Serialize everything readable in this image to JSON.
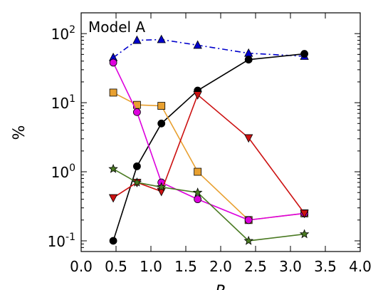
{
  "chart_data": {
    "type": "line",
    "title": "Model A",
    "xlabel": "R",
    "ylabel": "%",
    "xlim": [
      0.0,
      4.0
    ],
    "ylim": [
      0.07,
      200
    ],
    "y_scale": "log",
    "grid": false,
    "legend": "none",
    "x_ticks": [
      "0.0",
      "0.5",
      "1.0",
      "1.5",
      "2.0",
      "2.5",
      "3.0",
      "3.5",
      "4.0"
    ],
    "y_ticks": [
      {
        "base": "10",
        "exp": "-1"
      },
      {
        "base": "10",
        "exp": "0"
      },
      {
        "base": "10",
        "exp": "1"
      },
      {
        "base": "10",
        "exp": "2"
      }
    ],
    "series": [
      {
        "color": "#0000cc",
        "marker": "triangle-up",
        "line": "dashdot",
        "x": [
          0.46,
          0.8,
          1.15,
          1.67,
          2.4,
          3.2
        ],
        "y": [
          45,
          80,
          82,
          68,
          52,
          47
        ]
      },
      {
        "color": "#000000",
        "marker": "circle",
        "line": "solid",
        "x": [
          0.46,
          0.8,
          1.15,
          1.67,
          2.4,
          3.2
        ],
        "y": [
          0.1,
          1.2,
          5.0,
          15,
          42,
          51
        ]
      },
      {
        "color": "#e8a030",
        "marker": "square",
        "line": "solid",
        "x": [
          0.46,
          0.8,
          1.15,
          1.67,
          2.4,
          3.2
        ],
        "y": [
          14,
          9.3,
          9.0,
          1.0,
          0.2,
          0.25
        ]
      },
      {
        "color": "#dd00dd",
        "marker": "circle",
        "line": "solid",
        "x": [
          0.46,
          0.8,
          1.15,
          1.67,
          2.4,
          3.2
        ],
        "y": [
          38,
          7.3,
          0.7,
          0.4,
          0.2,
          0.25
        ]
      },
      {
        "color": "#cc1111",
        "marker": "triangle-down",
        "line": "solid",
        "x": [
          0.46,
          0.8,
          1.15,
          1.67,
          2.4,
          3.2
        ],
        "y": [
          0.42,
          0.7,
          0.52,
          13,
          3.1,
          0.25
        ]
      },
      {
        "color": "#4a7a22",
        "marker": "star",
        "line": "solid",
        "x": [
          0.46,
          0.8,
          1.15,
          1.67,
          2.4,
          3.2
        ],
        "y": [
          1.1,
          0.7,
          0.6,
          0.5,
          0.1,
          0.125
        ]
      }
    ]
  }
}
